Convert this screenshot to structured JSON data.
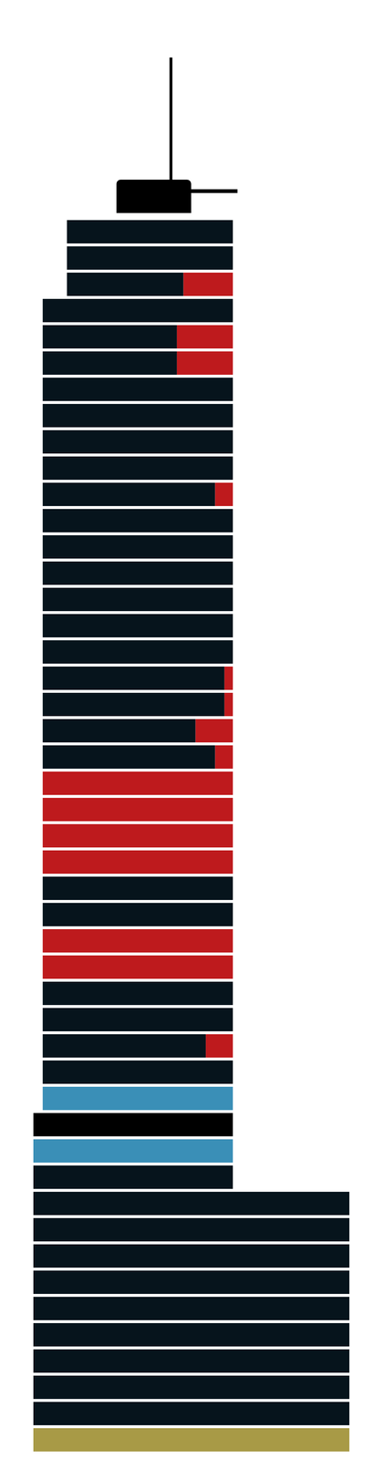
{
  "chart_data": {
    "type": "bar",
    "orientation": "horizontal",
    "stacked": true,
    "tick_labels": false,
    "grid": false,
    "categories": [
      null,
      null,
      null,
      null,
      null,
      null,
      null,
      null,
      null,
      null,
      null,
      null,
      null,
      null,
      null,
      null,
      null,
      null,
      null,
      null,
      null,
      null,
      null,
      null,
      null,
      null,
      null,
      null,
      null,
      null,
      null,
      null,
      null,
      null,
      null,
      null,
      null,
      null,
      null,
      null,
      null,
      null,
      null,
      null,
      null,
      null,
      null
    ],
    "starts": [
      36,
      36,
      36,
      10,
      10,
      10,
      10,
      10,
      10,
      10,
      10,
      10,
      10,
      10,
      10,
      10,
      10,
      10,
      10,
      10,
      10,
      10,
      10,
      10,
      10,
      10,
      10,
      10,
      10,
      10,
      10,
      10,
      10,
      10,
      0,
      0,
      0,
      0,
      0,
      0,
      0,
      0,
      0,
      0,
      0,
      0,
      0
    ],
    "xlim": [
      0,
      339
    ],
    "xticks": [],
    "series": [
      {
        "color": "#06141c",
        "values": [
          178,
          178,
          125,
          204,
          144,
          144,
          204,
          204,
          204,
          204,
          185,
          204,
          204,
          204,
          204,
          204,
          204,
          195,
          195,
          164,
          185,
          0,
          0,
          0,
          0,
          204,
          204,
          0,
          0,
          204,
          204,
          175,
          204,
          0,
          0,
          0,
          214,
          339,
          339,
          339,
          339,
          339,
          339,
          339,
          339,
          339,
          0
        ]
      },
      {
        "color": "#be1a1d",
        "values": [
          0,
          0,
          53,
          0,
          60,
          60,
          0,
          0,
          0,
          0,
          19,
          0,
          0,
          0,
          0,
          0,
          0,
          9,
          9,
          40,
          19,
          204,
          204,
          204,
          204,
          0,
          0,
          204,
          204,
          0,
          0,
          29,
          0,
          0,
          0,
          0,
          0,
          0,
          0,
          0,
          0,
          0,
          0,
          0,
          0,
          0,
          0
        ]
      },
      {
        "color": "#3a8fb7",
        "values": [
          0,
          0,
          0,
          0,
          0,
          0,
          0,
          0,
          0,
          0,
          0,
          0,
          0,
          0,
          0,
          0,
          0,
          0,
          0,
          0,
          0,
          0,
          0,
          0,
          0,
          0,
          0,
          0,
          0,
          0,
          0,
          0,
          0,
          204,
          0,
          214,
          0,
          0,
          0,
          0,
          0,
          0,
          0,
          0,
          0,
          0,
          0
        ]
      },
      {
        "color": "#000000",
        "values": [
          0,
          0,
          0,
          0,
          0,
          0,
          0,
          0,
          0,
          0,
          0,
          0,
          0,
          0,
          0,
          0,
          0,
          0,
          0,
          0,
          0,
          0,
          0,
          0,
          0,
          0,
          0,
          0,
          0,
          0,
          0,
          0,
          0,
          0,
          214,
          0,
          0,
          0,
          0,
          0,
          0,
          0,
          0,
          0,
          0,
          0,
          0
        ]
      },
      {
        "color": "#a89a46",
        "values": [
          0,
          0,
          0,
          0,
          0,
          0,
          0,
          0,
          0,
          0,
          0,
          0,
          0,
          0,
          0,
          0,
          0,
          0,
          0,
          0,
          0,
          0,
          0,
          0,
          0,
          0,
          0,
          0,
          0,
          0,
          0,
          0,
          0,
          0,
          0,
          0,
          0,
          0,
          0,
          0,
          0,
          0,
          0,
          0,
          0,
          0,
          339
        ]
      }
    ]
  }
}
